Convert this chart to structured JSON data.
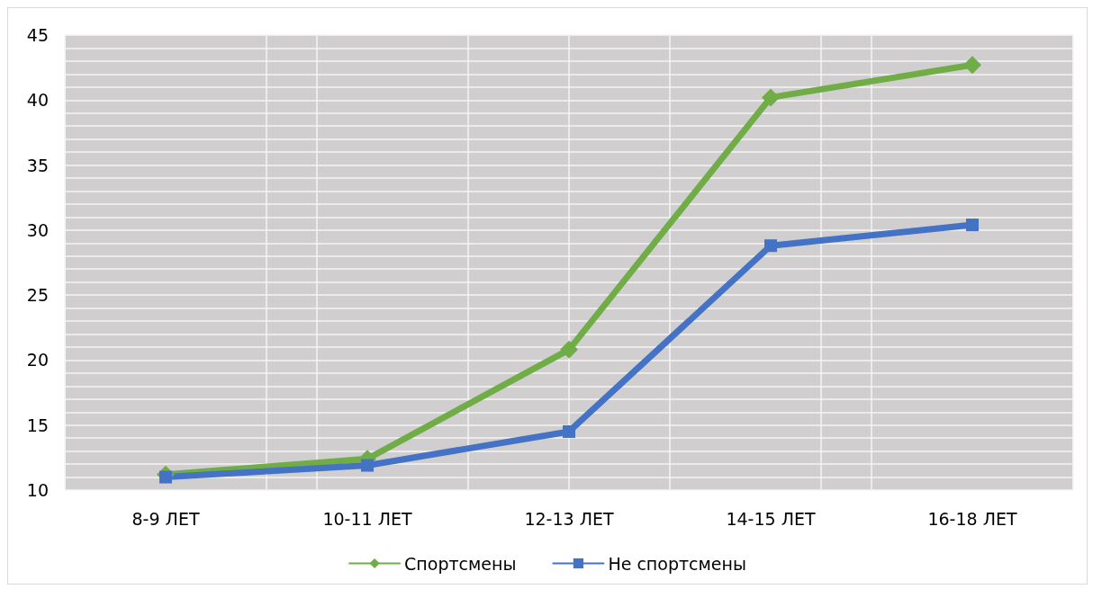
{
  "chart_data": {
    "type": "line",
    "categories": [
      "8-9 ЛЕТ",
      "10-11 ЛЕТ",
      "12-13 ЛЕТ",
      "14-15 ЛЕТ",
      "16-18 ЛЕТ"
    ],
    "series": [
      {
        "name": "Спортсмены",
        "color": "#70ad47",
        "marker": "diamond",
        "values": [
          11.2,
          12.4,
          20.8,
          40.2,
          42.7
        ]
      },
      {
        "name": "Не спортсмены",
        "color": "#4472c4",
        "marker": "square",
        "values": [
          11.0,
          11.9,
          14.5,
          28.8,
          30.4
        ]
      }
    ],
    "ylim": [
      10,
      45
    ],
    "yticks": [
      10,
      15,
      20,
      25,
      30,
      35,
      40,
      45
    ],
    "grid": true,
    "legend": "bottom",
    "line_style": "solid"
  }
}
